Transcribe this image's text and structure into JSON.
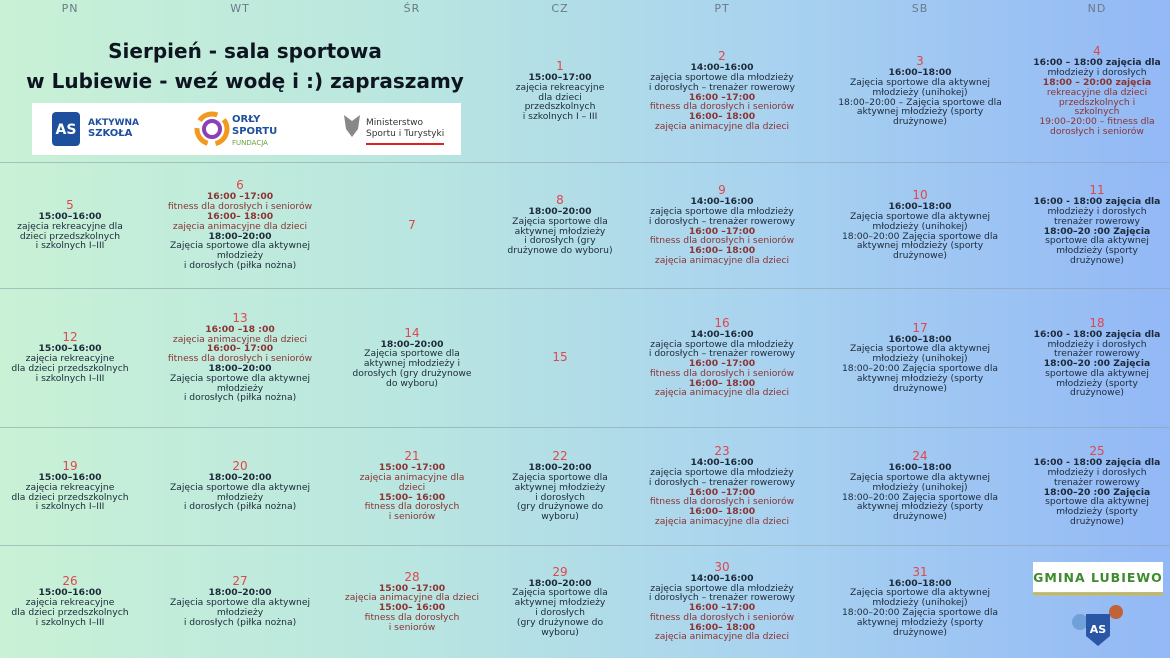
{
  "header": {
    "days": [
      "PN",
      "WT",
      "ŚR",
      "CZ",
      "PT",
      "SB",
      "ND"
    ],
    "title_lines": [
      "Sierpień - sala sportowa",
      "w Lubiewie - weź wodę i :) zapraszamy"
    ]
  },
  "logos": {
    "aktywna_szkola": {
      "mark": "AS",
      "text": [
        "AKTYWNA",
        "SZKOŁA"
      ]
    },
    "orly_sportu": {
      "text": [
        "ORŁY",
        "SPORTU",
        "FUNDACJA"
      ]
    },
    "ministerstwo": {
      "text": [
        "Ministerstwo",
        "Sportu i Turystyki"
      ]
    },
    "gmina": "GMINA LUBIEWO",
    "badge": "AS"
  },
  "weeks": [
    [
      null,
      null,
      null,
      {
        "day": "1",
        "lines": [
          {
            "text": "15:00–17:00",
            "bold": true
          },
          {
            "text": "zajęcia rekreacyjne"
          },
          {
            "text": "dla dzieci"
          },
          {
            "text": "przedszkolnych"
          },
          {
            "text": "i szkolnych I – III"
          }
        ]
      },
      {
        "day": "2",
        "lines": [
          {
            "text": "14:00–16:00",
            "bold": true
          },
          {
            "text": "zajęcia sportowe dla młodzieży"
          },
          {
            "text": "i dorosłych – trenażer rowerowy"
          },
          {
            "text": "16:00 –17:00",
            "bold": true,
            "color": "#8a3434"
          },
          {
            "text": "fitness dla dorosłych i seniorów",
            "color": "#8a3434"
          },
          {
            "text": "16:00– 18:00",
            "bold": true,
            "color": "#8a3434"
          },
          {
            "text": "zajęcia animacyjne dla dzieci",
            "color": "#8a3434"
          }
        ]
      },
      {
        "day": "3",
        "lines": [
          {
            "text": "16:00–18:00",
            "bold": true
          },
          {
            "text": "Zajęcia sportowe dla aktywnej"
          },
          {
            "text": "młodzieży (unihokej)"
          },
          {
            "text": "18:00–20:00 – Zajęcia sportowe dla"
          },
          {
            "text": "aktywnej młodzieży (sporty"
          },
          {
            "text": "drużynowe)"
          }
        ]
      },
      {
        "day": "4",
        "lines": [
          {
            "text": "16:00 – 18:00 zajęcia dla",
            "bold": true
          },
          {
            "text": "młodzieży i dorosłych"
          },
          {
            "text": "18:00 – 20:00 zajęcia",
            "bold": true,
            "color": "#8a3434"
          },
          {
            "text": "rekreacyjne dla dzieci",
            "color": "#8a3434"
          },
          {
            "text": "przedszkolnych i",
            "color": "#8a3434"
          },
          {
            "text": "szkolnych",
            "color": "#8a3434"
          },
          {
            "text": "19:00–20:00 – fitness dla",
            "color": "#8a3434"
          },
          {
            "text": "dorosłych i seniorów",
            "color": "#8a3434"
          }
        ]
      }
    ],
    [
      {
        "day": "5",
        "lines": [
          {
            "text": "15:00–16:00",
            "bold": true
          },
          {
            "text": "zajęcia rekreacyjne dla"
          },
          {
            "text": "dzieci przedszkolnych"
          },
          {
            "text": "i szkolnych  I–III"
          }
        ]
      },
      {
        "day": "6",
        "lines": [
          {
            "text": "16:00 –17:00",
            "bold": true,
            "color": "#8a3434"
          },
          {
            "text": "fitness dla dorosłych i seniorów",
            "color": "#8a3434"
          },
          {
            "text": "16:00– 18:00",
            "bold": true,
            "color": "#8a3434"
          },
          {
            "text": "zajęcia animacyjne dla dzieci",
            "color": "#8a3434"
          },
          {
            "text": "18:00–20:00",
            "bold": true
          },
          {
            "text": "Zajęcia sportowe dla aktywnej"
          },
          {
            "text": "młodzieży"
          },
          {
            "text": "i dorosłych (piłka nożna)"
          }
        ]
      },
      {
        "day": "7",
        "lines": []
      },
      {
        "day": "8",
        "lines": [
          {
            "text": "18:00–20:00",
            "bold": true
          },
          {
            "text": "Zajęcia sportowe dla"
          },
          {
            "text": "aktywnej młodzieży"
          },
          {
            "text": "i dorosłych (gry"
          },
          {
            "text": "drużynowe do wyboru)"
          }
        ]
      },
      {
        "day": "9",
        "lines": [
          {
            "text": "14:00–16:00",
            "bold": true
          },
          {
            "text": "zajęcia sportowe dla młodzieży"
          },
          {
            "text": "i dorosłych – trenażer rowerowy"
          },
          {
            "text": "16:00 –17:00",
            "bold": true,
            "color": "#8a3434"
          },
          {
            "text": "fitness dla dorosłych i seniorów",
            "color": "#8a3434"
          },
          {
            "text": "16:00– 18:00",
            "bold": true,
            "color": "#8a3434"
          },
          {
            "text": "zajęcia animacyjne dla dzieci",
            "color": "#8a3434"
          }
        ]
      },
      {
        "day": "10",
        "lines": [
          {
            "text": "16:00–18:00",
            "bold": true
          },
          {
            "text": "Zajęcia sportowe dla aktywnej"
          },
          {
            "text": "młodzieży (unihokej)"
          },
          {
            "text": "18:00–20:00 Zajęcia sportowe dla"
          },
          {
            "text": "aktywnej młodzieży (sporty"
          },
          {
            "text": "drużynowe)"
          }
        ]
      },
      {
        "day": "11",
        "lines": [
          {
            "text": "16:00 - 18:00  zajęcia dla",
            "bold": true
          },
          {
            "text": "młodzieży i dorosłych"
          },
          {
            "text": "trenażer rowerowy"
          },
          {
            "text": "18:00–20 :00 Zajęcia",
            "bold": true
          },
          {
            "text": "sportowe dla aktywnej"
          },
          {
            "text": "młodzieży (sporty"
          },
          {
            "text": "drużynowe)"
          }
        ]
      }
    ],
    [
      {
        "day": "12",
        "lines": [
          {
            "text": "15:00–16:00",
            "bold": true
          },
          {
            "text": "zajęcia rekreacyjne"
          },
          {
            "text": "dla dzieci przedszkolnych"
          },
          {
            "text": "i szkolnych  I–III"
          }
        ]
      },
      {
        "day": "13",
        "lines": [
          {
            "text": "16:00 –18 :00",
            "bold": true,
            "color": "#8a3434"
          },
          {
            "text": "zajęcia animacyjne dla dzieci",
            "color": "#8a3434"
          },
          {
            "text": "16:00– 17:00",
            "bold": true,
            "color": "#8a3434"
          },
          {
            "text": "fitness dla dorosłych i seniorów",
            "color": "#8a3434"
          },
          {
            "text": "18:00–20:00",
            "bold": true
          },
          {
            "text": "Zajęcia sportowe dla aktywnej"
          },
          {
            "text": "młodzieży"
          },
          {
            "text": "i dorosłych (piłka nożna)"
          }
        ]
      },
      {
        "day": "14",
        "lines": [
          {
            "text": "18:00–20:00",
            "bold": true
          },
          {
            "text": "Zajęcia sportowe dla"
          },
          {
            "text": "aktywnej młodzieży i"
          },
          {
            "text": "dorosłych (gry drużynowe"
          },
          {
            "text": "do wyboru)"
          }
        ]
      },
      {
        "day": "15",
        "lines": []
      },
      {
        "day": "16",
        "lines": [
          {
            "text": "14:00–16:00",
            "bold": true
          },
          {
            "text": "zajęcia sportowe dla młodzieży"
          },
          {
            "text": "i dorosłych – trenażer rowerowy"
          },
          {
            "text": "16:00 –17:00",
            "bold": true,
            "color": "#8a3434"
          },
          {
            "text": "fitness dla dorosłych i seniorów",
            "color": "#8a3434"
          },
          {
            "text": "16:00– 18:00",
            "bold": true,
            "color": "#8a3434"
          },
          {
            "text": "zajęcia animacyjne dla dzieci",
            "color": "#8a3434"
          }
        ]
      },
      {
        "day": "17",
        "lines": [
          {
            "text": "16:00–18:00",
            "bold": true
          },
          {
            "text": "Zajęcia sportowe dla aktywnej"
          },
          {
            "text": "młodzieży (unihokej)"
          },
          {
            "text": "18:00–20:00 Zajęcia sportowe dla"
          },
          {
            "text": "aktywnej młodzieży (sporty"
          },
          {
            "text": "drużynowe)"
          }
        ]
      },
      {
        "day": "18",
        "lines": [
          {
            "text": "16:00 - 18:00 zajęcia dla",
            "bold": true
          },
          {
            "text": "młodzieży i dorosłych"
          },
          {
            "text": "trenażer rowerowy"
          },
          {
            "text": "18:00–20 :00 Zajęcia",
            "bold": true
          },
          {
            "text": "sportowe dla aktywnej"
          },
          {
            "text": "młodzieży (sporty"
          },
          {
            "text": "drużynowe)"
          }
        ]
      }
    ],
    [
      {
        "day": "19",
        "lines": [
          {
            "text": "15:00–16:00",
            "bold": true
          },
          {
            "text": "zajęcia rekreacyjne"
          },
          {
            "text": "dla dzieci przedszkolnych"
          },
          {
            "text": "i szkolnych  I–III"
          }
        ]
      },
      {
        "day": "20",
        "lines": [
          {
            "text": "18:00–20:00",
            "bold": true
          },
          {
            "text": "Zajęcia sportowe dla aktywnej"
          },
          {
            "text": "młodzieży"
          },
          {
            "text": "i dorosłych (piłka nożna)"
          }
        ]
      },
      {
        "day": "21",
        "lines": [
          {
            "text": "15:00 –17:00",
            "bold": true,
            "color": "#8a3434"
          },
          {
            "text": "zajęcia animacyjne dla",
            "color": "#8a3434"
          },
          {
            "text": "dzieci",
            "color": "#8a3434"
          },
          {
            "text": "15:00– 16:00",
            "bold": true,
            "color": "#8a3434"
          },
          {
            "text": "fitness dla dorosłych",
            "color": "#8a3434"
          },
          {
            "text": "i seniorów",
            "color": "#8a3434"
          }
        ]
      },
      {
        "day": "22",
        "lines": [
          {
            "text": "18:00–20:00",
            "bold": true
          },
          {
            "text": "Zajęcia sportowe dla"
          },
          {
            "text": "aktywnej młodzieży"
          },
          {
            "text": "i dorosłych"
          },
          {
            "text": "(gry drużynowe do"
          },
          {
            "text": "wyboru)"
          }
        ]
      },
      {
        "day": "23",
        "lines": [
          {
            "text": "14:00–16:00",
            "bold": true
          },
          {
            "text": "zajęcia sportowe dla młodzieży"
          },
          {
            "text": "i dorosłych – trenażer rowerowy"
          },
          {
            "text": "16:00 –17:00",
            "bold": true,
            "color": "#8a3434"
          },
          {
            "text": "fitness dla dorosłych i seniorów",
            "color": "#8a3434"
          },
          {
            "text": "16:00– 18:00",
            "bold": true,
            "color": "#8a3434"
          },
          {
            "text": "zajęcia animacyjne dla dzieci",
            "color": "#8a3434"
          }
        ]
      },
      {
        "day": "24",
        "lines": [
          {
            "text": "16:00–18:00",
            "bold": true
          },
          {
            "text": "Zajęcia sportowe dla aktywnej"
          },
          {
            "text": "młodzieży (unihokej)"
          },
          {
            "text": "18:00–20:00 Zajęcia sportowe dla"
          },
          {
            "text": "aktywnej młodzieży (sporty"
          },
          {
            "text": "drużynowe)"
          }
        ]
      },
      {
        "day": "25",
        "lines": [
          {
            "text": "16:00 - 18:00 zajęcia dla",
            "bold": true
          },
          {
            "text": "młodzieży i dorosłych"
          },
          {
            "text": "trenażer rowerowy"
          },
          {
            "text": "18:00–20 :00 Zajęcia",
            "bold": true
          },
          {
            "text": "sportowe dla aktywnej"
          },
          {
            "text": "młodzieży (sporty"
          },
          {
            "text": "drużynowe)"
          }
        ]
      }
    ],
    [
      {
        "day": "26",
        "lines": [
          {
            "text": "15:00–16:00",
            "bold": true
          },
          {
            "text": "zajęcia rekreacyjne"
          },
          {
            "text": "dla dzieci przedszkolnych"
          },
          {
            "text": "i szkolnych  I–III"
          }
        ]
      },
      {
        "day": "27",
        "lines": [
          {
            "text": "18:00–20:00",
            "bold": true
          },
          {
            "text": "Zajęcia sportowe dla aktywnej"
          },
          {
            "text": "młodzieży"
          },
          {
            "text": "i dorosłych (piłka nożna)"
          }
        ]
      },
      {
        "day": "28",
        "lines": [
          {
            "text": "15:00 –17:00",
            "bold": true,
            "color": "#8a3434"
          },
          {
            "text": "zajęcia animacyjne dla dzieci",
            "color": "#8a3434"
          },
          {
            "text": "15:00– 16:00",
            "bold": true,
            "color": "#8a3434"
          },
          {
            "text": "fitness dla dorosłych",
            "color": "#8a3434"
          },
          {
            "text": "i seniorów",
            "color": "#8a3434"
          }
        ]
      },
      {
        "day": "29",
        "lines": [
          {
            "text": "18:00–20:00",
            "bold": true
          },
          {
            "text": "Zajęcia sportowe dla"
          },
          {
            "text": "aktywnej młodzieży"
          },
          {
            "text": "i dorosłych"
          },
          {
            "text": "(gry drużynowe do"
          },
          {
            "text": "wyboru)"
          }
        ]
      },
      {
        "day": "30",
        "lines": [
          {
            "text": "14:00–16:00",
            "bold": true
          },
          {
            "text": "zajęcia sportowe dla młodzieży"
          },
          {
            "text": "i dorosłych – trenażer rowerowy"
          },
          {
            "text": "16:00 –17:00",
            "bold": true,
            "color": "#8a3434"
          },
          {
            "text": "fitness dla dorosłych i seniorów",
            "color": "#8a3434"
          },
          {
            "text": "16:00– 18:00",
            "bold": true,
            "color": "#8a3434"
          },
          {
            "text": "zajęcia animacyjne dla dzieci",
            "color": "#8a3434"
          }
        ]
      },
      {
        "day": "31",
        "lines": [
          {
            "text": "16:00–18:00",
            "bold": true
          },
          {
            "text": "Zajęcia sportowe dla aktywnej"
          },
          {
            "text": "młodzieży (unihokej)"
          },
          {
            "text": "18:00–20:00 Zajęcia sportowe dla"
          },
          {
            "text": "aktywnej młodzieży (sporty"
          },
          {
            "text": "drużynowe)"
          }
        ]
      },
      null
    ]
  ]
}
